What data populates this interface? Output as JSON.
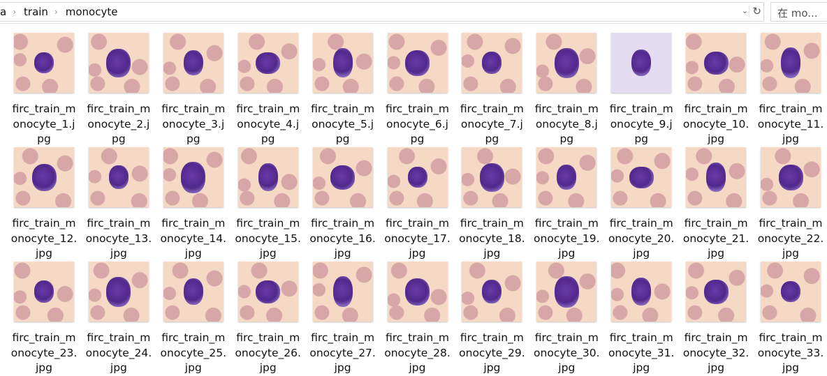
{
  "breadcrumb": [
    "a",
    "train",
    "monocyte"
  ],
  "search_placeholder": "在 mo...",
  "colors": {
    "thumb_bg": "#f6d9c4",
    "rbc": "#d7a7a8",
    "nucleus": "#5a2d96"
  },
  "files": [
    "firc_train_monocyte_1.jpg",
    "firc_train_monocyte_2.jpg",
    "firc_train_monocyte_3.jpg",
    "firc_train_monocyte_4.jpg",
    "firc_train_monocyte_5.jpg",
    "firc_train_monocyte_6.jpg",
    "firc_train_monocyte_7.jpg",
    "firc_train_monocyte_8.jpg",
    "firc_train_monocyte_9.jpg",
    "firc_train_monocyte_10.jpg",
    "firc_train_monocyte_11.jpg",
    "firc_train_monocyte_12.jpg",
    "firc_train_monocyte_13.jpg",
    "firc_train_monocyte_14.jpg",
    "firc_train_monocyte_15.jpg",
    "firc_train_monocyte_16.jpg",
    "firc_train_monocyte_17.jpg",
    "firc_train_monocyte_18.jpg",
    "firc_train_monocyte_19.jpg",
    "firc_train_monocyte_20.jpg",
    "firc_train_monocyte_21.jpg",
    "firc_train_monocyte_22.jpg",
    "firc_train_monocyte_23.jpg",
    "firc_train_monocyte_24.jpg",
    "firc_train_monocyte_25.jpg",
    "firc_train_monocyte_26.jpg",
    "firc_train_monocyte_27.jpg",
    "firc_train_monocyte_28.jpg",
    "firc_train_monocyte_29.jpg",
    "firc_train_monocyte_30.jpg",
    "firc_train_monocyte_31.jpg",
    "firc_train_monocyte_32.jpg",
    "firc_train_monocyte_33.jpg"
  ]
}
